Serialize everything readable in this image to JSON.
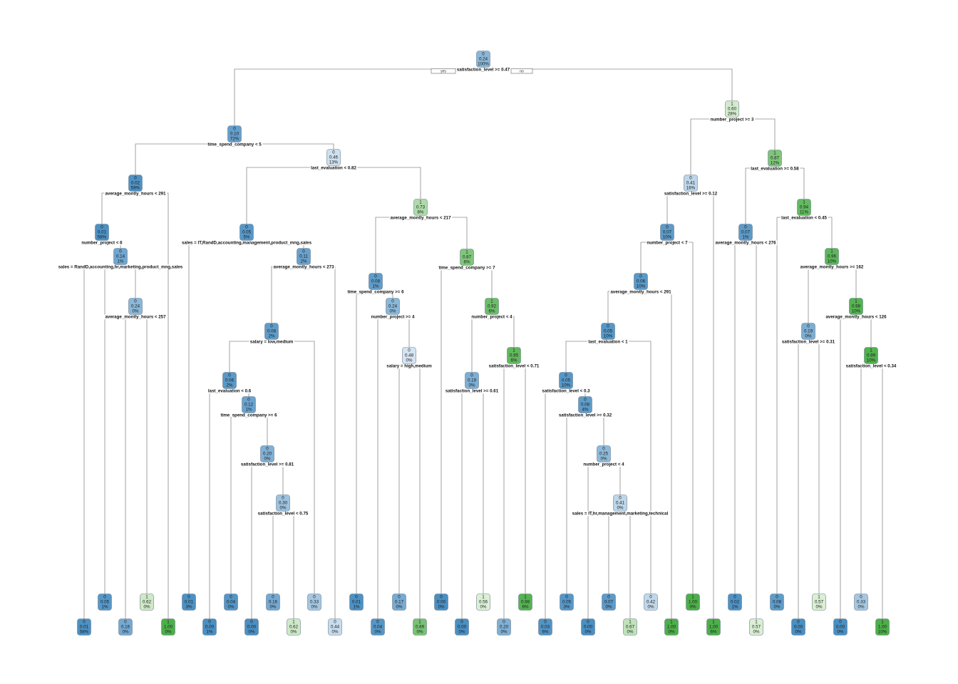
{
  "branch_labels": {
    "yes": "yes",
    "no": "no"
  },
  "colors": {
    "class0_dark": "#4a8fc2",
    "class0_light": "#dde9f4",
    "class1_light": "#e6f4df",
    "class1_dark": "#4daf4a"
  },
  "nodes": [
    {
      "id": "n1",
      "l": [
        "0",
        "0.24",
        "100%"
      ],
      "split": "satisfaction_level >= 0.47"
    },
    {
      "id": "n2",
      "l": [
        "0",
        "0.10",
        "72%"
      ],
      "split": "time_spend_company < 5"
    },
    {
      "id": "n3",
      "l": [
        "1",
        "0.60",
        "28%"
      ],
      "split": "number_project >= 3"
    },
    {
      "id": "n4",
      "l": [
        "0",
        "0.02",
        "59%"
      ],
      "split": "average_montly_hours < 291"
    },
    {
      "id": "n5",
      "l": [
        "0",
        "0.46",
        "13%"
      ],
      "split": "last_evaluation < 0.82"
    },
    {
      "id": "n8",
      "l": [
        "0",
        "0.01",
        "58%"
      ],
      "split": "number_project < 6"
    },
    {
      "id": "n16",
      "l": [
        "0",
        "0.14",
        "1%"
      ],
      "split": "sales = RandD,accounting,hr,marketing,product_mng,sales"
    },
    {
      "id": "n33",
      "l": [
        "0",
        "0.24",
        "0%"
      ],
      "split": "average_montly_hours < 257"
    },
    {
      "id": "n10",
      "l": [
        "0",
        "0.05",
        "5%"
      ],
      "split": "sales = IT,RandD,accounting,management,product_mng,sales"
    },
    {
      "id": "n21",
      "l": [
        "0",
        "0.11",
        "2%"
      ],
      "split": "average_montly_hours < 273"
    },
    {
      "id": "n42",
      "l": [
        "0",
        "0.08",
        "2%"
      ],
      "split": "salary = low,medium"
    },
    {
      "id": "n84",
      "l": [
        "0",
        "0.06",
        "2%"
      ],
      "split": "last_evaluation < 0.6"
    },
    {
      "id": "n169",
      "l": [
        "0",
        "0.12",
        "1%"
      ],
      "split": "time_spend_company >= 6"
    },
    {
      "id": "n339",
      "l": [
        "0",
        "0.20",
        "0%"
      ],
      "split": "satisfaction_level >= 0.81"
    },
    {
      "id": "n679",
      "l": [
        "0",
        "0.30",
        "0%"
      ],
      "split": "satisfaction_level < 0.75"
    },
    {
      "id": "n11",
      "l": [
        "1",
        "0.73",
        "8%"
      ],
      "split": "average_montly_hours < 217"
    },
    {
      "id": "n22",
      "l": [
        "0",
        "0.08",
        "1%"
      ],
      "split": "time_spend_company >= 6"
    },
    {
      "id": "n45",
      "l": [
        "0",
        "0.24",
        "0%"
      ],
      "split": "number_project >= 4"
    },
    {
      "id": "n91",
      "l": [
        "0",
        "0.48",
        "0%"
      ],
      "split": "salary = high,medium"
    },
    {
      "id": "n23",
      "l": [
        "1",
        "0.87",
        "6%"
      ],
      "split": "time_spend_company >= 7"
    },
    {
      "id": "n47",
      "l": [
        "1",
        "0.92",
        "6%"
      ],
      "split": "number_project < 4"
    },
    {
      "id": "n94",
      "l": [
        "0",
        "0.19",
        "0%"
      ],
      "split": "satisfaction_level >= 0.61"
    },
    {
      "id": "n95",
      "l": [
        "1",
        "0.95",
        "6%"
      ],
      "split": "satisfaction_level < 0.71"
    },
    {
      "id": "n6",
      "l": [
        "0",
        "0.41",
        "16%"
      ],
      "split": "satisfaction_level >= 0.12"
    },
    {
      "id": "n12",
      "l": [
        "0",
        "0.07",
        "10%"
      ],
      "split": "number_project < 7"
    },
    {
      "id": "n24",
      "l": [
        "0",
        "0.06",
        "10%"
      ],
      "split": "average_montly_hours < 291"
    },
    {
      "id": "n48",
      "l": [
        "0",
        "0.05",
        "10%"
      ],
      "split": "last_evaluation < 1"
    },
    {
      "id": "n96",
      "l": [
        "0",
        "0.05",
        "10%"
      ],
      "split": "satisfaction_level < 0.3"
    },
    {
      "id": "n193",
      "l": [
        "0",
        "0.08",
        "4%"
      ],
      "split": "satisfaction_level >= 0.32"
    },
    {
      "id": "n387",
      "l": [
        "0",
        "0.25",
        "0%"
      ],
      "split": "number_project < 4"
    },
    {
      "id": "n775",
      "l": [
        "0",
        "0.41",
        "0%"
      ],
      "split": "sales = IT,hr,management,marketing,technical"
    },
    {
      "id": "n7",
      "l": [
        "1",
        "0.87",
        "12%"
      ],
      "split": "last_evaluation >= 0.58"
    },
    {
      "id": "n14",
      "l": [
        "0",
        "0.07",
        "1%"
      ],
      "split": "average_montly_hours < 276"
    },
    {
      "id": "n15",
      "l": [
        "1",
        "0.94",
        "11%"
      ],
      "split": "last_evaluation < 0.45"
    },
    {
      "id": "n31",
      "l": [
        "1",
        "0.96",
        "10%"
      ],
      "split": "average_montly_hours >= 162"
    },
    {
      "id": "n62",
      "l": [
        "0",
        "0.19",
        "0%"
      ],
      "split": "satisfaction_level >= 0.31"
    },
    {
      "id": "n63",
      "l": [
        "1",
        "0.98",
        "10%"
      ],
      "split": "average_montly_hours < 126"
    },
    {
      "id": "n127",
      "l": [
        "1",
        "0.99",
        "10%"
      ],
      "split": "satisfaction_level < 0.34"
    },
    {
      "id": "L16",
      "l": [
        "0",
        "0.01",
        "58%"
      ]
    },
    {
      "id": "L32",
      "l": [
        "0",
        "0.05",
        "1%"
      ]
    },
    {
      "id": "L66",
      "l": [
        "0",
        "0.16",
        "0%"
      ]
    },
    {
      "id": "L67",
      "l": [
        "1",
        "0.62",
        "0%"
      ]
    },
    {
      "id": "L9",
      "l": [
        "1",
        "1.00",
        "0%"
      ]
    },
    {
      "id": "L20",
      "l": [
        "0",
        "0.01",
        "3%"
      ]
    },
    {
      "id": "L168",
      "l": [
        "0",
        "0.00",
        "1%"
      ]
    },
    {
      "id": "L338",
      "l": [
        "0",
        "0.04",
        "0%"
      ]
    },
    {
      "id": "L678",
      "l": [
        "0",
        "0.00",
        "0%"
      ]
    },
    {
      "id": "L1358",
      "l": [
        "0",
        "0.16",
        "0%"
      ]
    },
    {
      "id": "L1359",
      "l": [
        "1",
        "0.62",
        "0%"
      ]
    },
    {
      "id": "L85",
      "l": [
        "0",
        "0.33",
        "0%"
      ]
    },
    {
      "id": "L43",
      "l": [
        "0",
        "0.44",
        "0%"
      ]
    },
    {
      "id": "L44",
      "l": [
        "0",
        "0.01",
        "1%"
      ]
    },
    {
      "id": "L90",
      "l": [
        "0",
        "0.04",
        "0%"
      ]
    },
    {
      "id": "L182",
      "l": [
        "0",
        "0.17",
        "0%"
      ]
    },
    {
      "id": "L183",
      "l": [
        "1",
        "0.89",
        "0%"
      ]
    },
    {
      "id": "L46",
      "l": [
        "0",
        "0.00",
        "0%"
      ]
    },
    {
      "id": "L93",
      "l": [
        "0",
        "0.00",
        "0%"
      ]
    },
    {
      "id": "L188",
      "l": [
        "1",
        "0.56",
        "0%"
      ]
    },
    {
      "id": "L189",
      "l": [
        "0",
        "0.20",
        "0%"
      ]
    },
    {
      "id": "L190",
      "l": [
        "1",
        "0.98",
        "6%"
      ]
    },
    {
      "id": "L191",
      "l": [
        "0",
        "0.05",
        "3%"
      ]
    },
    {
      "id": "L97",
      "l": [
        "0",
        "0.03",
        "6%"
      ]
    },
    {
      "id": "L386",
      "l": [
        "0",
        "0.00",
        "0%"
      ]
    },
    {
      "id": "L774",
      "l": [
        "0",
        "0.07",
        "0%"
      ]
    },
    {
      "id": "L1550",
      "l": [
        "1",
        "0.67",
        "0%"
      ]
    },
    {
      "id": "L1551",
      "l": [
        "0",
        "0.42",
        "0%"
      ]
    },
    {
      "id": "L49",
      "l": [
        "1",
        "1.00",
        "0%"
      ]
    },
    {
      "id": "L25",
      "l": [
        "1",
        "1.00",
        "0%"
      ]
    },
    {
      "id": "L13",
      "l": [
        "1",
        "1.00",
        "6%"
      ]
    },
    {
      "id": "L28",
      "l": [
        "0",
        "0.02",
        "1%"
      ]
    },
    {
      "id": "L29",
      "l": [
        "1",
        "0.57",
        "0%"
      ]
    },
    {
      "id": "L30",
      "l": [
        "0",
        "0.08",
        "0%"
      ]
    },
    {
      "id": "L124",
      "l": [
        "0",
        "0.00",
        "0%"
      ]
    },
    {
      "id": "L125",
      "l": [
        "1",
        "0.57",
        "0%"
      ]
    },
    {
      "id": "L126",
      "l": [
        "0",
        "0.00",
        "0%"
      ]
    },
    {
      "id": "L254",
      "l": [
        "0",
        "0.33",
        "0%"
      ]
    },
    {
      "id": "L255",
      "l": [
        "1",
        "1.00",
        "10%"
      ]
    }
  ],
  "edges": [
    [
      "n1",
      "n2"
    ],
    [
      "n1",
      "n3"
    ],
    [
      "n2",
      "n4"
    ],
    [
      "n2",
      "n5"
    ],
    [
      "n4",
      "n8"
    ],
    [
      "n4",
      "L9"
    ],
    [
      "n8",
      "n16"
    ],
    [
      "n16",
      "L16"
    ],
    [
      "n16",
      "L32"
    ],
    [
      "n16",
      "n33"
    ],
    [
      "n33",
      "L66"
    ],
    [
      "n33",
      "L67"
    ],
    [
      "n5",
      "n10"
    ],
    [
      "n5",
      "n11"
    ],
    [
      "n10",
      "L20"
    ],
    [
      "n10",
      "n21"
    ],
    [
      "n21",
      "n42"
    ],
    [
      "n21",
      "L43"
    ],
    [
      "n42",
      "n84"
    ],
    [
      "n42",
      "L85"
    ],
    [
      "n84",
      "L168"
    ],
    [
      "n84",
      "n169"
    ],
    [
      "n169",
      "L338"
    ],
    [
      "n169",
      "n339"
    ],
    [
      "n339",
      "L678"
    ],
    [
      "n339",
      "n679"
    ],
    [
      "n679",
      "L1358"
    ],
    [
      "n679",
      "L1359"
    ],
    [
      "n11",
      "n22"
    ],
    [
      "n11",
      "n23"
    ],
    [
      "n22",
      "L44"
    ],
    [
      "n22",
      "n45"
    ],
    [
      "n45",
      "L90"
    ],
    [
      "n45",
      "n91"
    ],
    [
      "n91",
      "L182"
    ],
    [
      "n91",
      "L183"
    ],
    [
      "n23",
      "L46"
    ],
    [
      "n23",
      "n47"
    ],
    [
      "n47",
      "n94"
    ],
    [
      "n47",
      "n95"
    ],
    [
      "n94",
      "L93"
    ],
    [
      "n94",
      "L188"
    ],
    [
      "n95",
      "L189"
    ],
    [
      "n95",
      "L190"
    ],
    [
      "n3",
      "n6"
    ],
    [
      "n3",
      "n7"
    ],
    [
      "n6",
      "n12"
    ],
    [
      "n6",
      "L13"
    ],
    [
      "n12",
      "n24"
    ],
    [
      "n12",
      "L25"
    ],
    [
      "n24",
      "n48"
    ],
    [
      "n24",
      "L49"
    ],
    [
      "n48",
      "n96"
    ],
    [
      "n48",
      "L1551"
    ],
    [
      "n96",
      "L97"
    ],
    [
      "n96",
      "n193"
    ],
    [
      "n193",
      "L191"
    ],
    [
      "n193",
      "n387"
    ],
    [
      "n387",
      "L386"
    ],
    [
      "n387",
      "n775"
    ],
    [
      "n775",
      "L774"
    ],
    [
      "n775",
      "L1550"
    ],
    [
      "n7",
      "n14"
    ],
    [
      "n7",
      "n15"
    ],
    [
      "n14",
      "L28"
    ],
    [
      "n14",
      "L29"
    ],
    [
      "n15",
      "L30"
    ],
    [
      "n15",
      "n31"
    ],
    [
      "n31",
      "n62"
    ],
    [
      "n31",
      "n63"
    ],
    [
      "n62",
      "L124"
    ],
    [
      "n62",
      "L125"
    ],
    [
      "n63",
      "L126"
    ],
    [
      "n63",
      "n127"
    ],
    [
      "n127",
      "L254"
    ],
    [
      "n127",
      "L255"
    ]
  ]
}
